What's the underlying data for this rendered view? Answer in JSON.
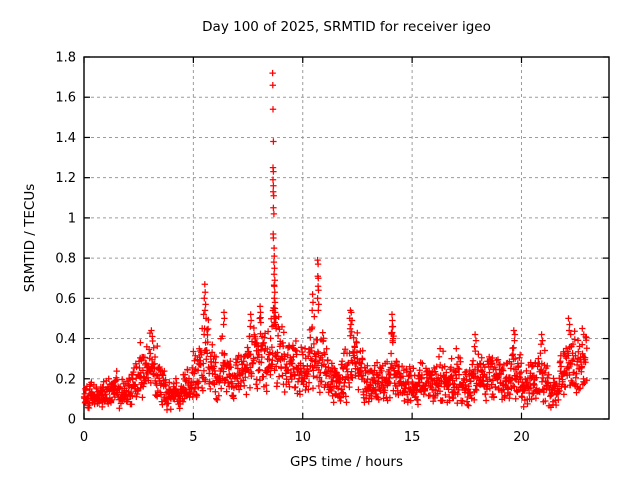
{
  "chart_data": {
    "type": "scatter",
    "title": "Day 100 of 2025, SRMTID for receiver igeo",
    "xlabel": "GPS time / hours",
    "ylabel": "SRMTID / TECUs",
    "xlim": [
      0,
      24
    ],
    "ylim": [
      0,
      1.8
    ],
    "xticks": [
      0,
      5,
      10,
      15,
      20
    ],
    "xtick_labels": [
      "0",
      "5",
      "10",
      "15",
      "20"
    ],
    "yticks": [
      0,
      0.2,
      0.4,
      0.6,
      0.8,
      1.0,
      1.2,
      1.4,
      1.6,
      1.8
    ],
    "ytick_labels": [
      "0",
      "0.2",
      "0.4",
      "0.6",
      "0.8",
      "1",
      "1.2",
      "1.4",
      "1.6",
      "1.8"
    ],
    "grid": true,
    "legend": "none",
    "marker": "plus",
    "marker_color": "#ff0000",
    "points_per_segment": 18,
    "segment_hours": 0.25,
    "envelope": [
      [
        0,
        0.11,
        0.06
      ],
      [
        0.25,
        0.12,
        0.07
      ],
      [
        0.5,
        0.11,
        0.06
      ],
      [
        0.75,
        0.12,
        0.06
      ],
      [
        1,
        0.13,
        0.07
      ],
      [
        1.25,
        0.15,
        0.08
      ],
      [
        1.5,
        0.13,
        0.07
      ],
      [
        1.75,
        0.12,
        0.06
      ],
      [
        2,
        0.14,
        0.07
      ],
      [
        2.25,
        0.17,
        0.09
      ],
      [
        2.5,
        0.2,
        0.1
      ],
      [
        2.75,
        0.24,
        0.11
      ],
      [
        3,
        0.26,
        0.13
      ],
      [
        3.25,
        0.22,
        0.11
      ],
      [
        3.5,
        0.15,
        0.08
      ],
      [
        3.75,
        0.11,
        0.07
      ],
      [
        4,
        0.12,
        0.07
      ],
      [
        4.25,
        0.13,
        0.07
      ],
      [
        4.5,
        0.16,
        0.08
      ],
      [
        4.75,
        0.18,
        0.09
      ],
      [
        5,
        0.21,
        0.1
      ],
      [
        5.25,
        0.28,
        0.14
      ],
      [
        5.5,
        0.34,
        0.19
      ],
      [
        5.75,
        0.26,
        0.12
      ],
      [
        6,
        0.22,
        0.11
      ],
      [
        6.25,
        0.28,
        0.14
      ],
      [
        6.5,
        0.25,
        0.12
      ],
      [
        6.75,
        0.2,
        0.1
      ],
      [
        7,
        0.22,
        0.1
      ],
      [
        7.25,
        0.24,
        0.12
      ],
      [
        7.5,
        0.29,
        0.14
      ],
      [
        7.75,
        0.29,
        0.14
      ],
      [
        8,
        0.31,
        0.15
      ],
      [
        8.25,
        0.29,
        0.14
      ],
      [
        8.5,
        0.38,
        0.22
      ],
      [
        8.75,
        0.36,
        0.2
      ],
      [
        9,
        0.3,
        0.15
      ],
      [
        9.25,
        0.27,
        0.13
      ],
      [
        9.5,
        0.25,
        0.12
      ],
      [
        9.75,
        0.22,
        0.11
      ],
      [
        10,
        0.24,
        0.12
      ],
      [
        10.25,
        0.28,
        0.14
      ],
      [
        10.5,
        0.34,
        0.18
      ],
      [
        10.75,
        0.28,
        0.14
      ],
      [
        11,
        0.22,
        0.11
      ],
      [
        11.25,
        0.18,
        0.1
      ],
      [
        11.5,
        0.17,
        0.1
      ],
      [
        11.75,
        0.21,
        0.11
      ],
      [
        12,
        0.28,
        0.14
      ],
      [
        12.25,
        0.3,
        0.14
      ],
      [
        12.5,
        0.24,
        0.12
      ],
      [
        12.75,
        0.18,
        0.1
      ],
      [
        13,
        0.15,
        0.09
      ],
      [
        13.25,
        0.17,
        0.09
      ],
      [
        13.5,
        0.19,
        0.1
      ],
      [
        13.75,
        0.2,
        0.1
      ],
      [
        14,
        0.27,
        0.15
      ],
      [
        14.25,
        0.19,
        0.1
      ],
      [
        14.5,
        0.17,
        0.09
      ],
      [
        14.75,
        0.16,
        0.08
      ],
      [
        15,
        0.16,
        0.08
      ],
      [
        15.25,
        0.17,
        0.09
      ],
      [
        15.5,
        0.17,
        0.09
      ],
      [
        15.75,
        0.18,
        0.09
      ],
      [
        16,
        0.19,
        0.1
      ],
      [
        16.25,
        0.21,
        0.11
      ],
      [
        16.5,
        0.18,
        0.1
      ],
      [
        16.75,
        0.18,
        0.1
      ],
      [
        17,
        0.2,
        0.11
      ],
      [
        17.25,
        0.16,
        0.09
      ],
      [
        17.5,
        0.15,
        0.09
      ],
      [
        17.75,
        0.23,
        0.12
      ],
      [
        18,
        0.21,
        0.11
      ],
      [
        18.25,
        0.2,
        0.1
      ],
      [
        18.5,
        0.19,
        0.1
      ],
      [
        18.75,
        0.18,
        0.09
      ],
      [
        19,
        0.18,
        0.09
      ],
      [
        19.25,
        0.19,
        0.1
      ],
      [
        19.5,
        0.25,
        0.13
      ],
      [
        19.75,
        0.21,
        0.11
      ],
      [
        20,
        0.18,
        0.1
      ],
      [
        20.25,
        0.18,
        0.1
      ],
      [
        20.5,
        0.2,
        0.11
      ],
      [
        20.75,
        0.23,
        0.12
      ],
      [
        21,
        0.2,
        0.12
      ],
      [
        21.25,
        0.14,
        0.08
      ],
      [
        21.5,
        0.15,
        0.09
      ],
      [
        21.75,
        0.2,
        0.11
      ],
      [
        22,
        0.27,
        0.13
      ],
      [
        22.25,
        0.28,
        0.14
      ],
      [
        22.5,
        0.24,
        0.13
      ],
      [
        22.75,
        0.27,
        0.14
      ]
    ],
    "outliers": [
      [
        8.62,
        1.72
      ],
      [
        8.63,
        1.66
      ],
      [
        8.64,
        1.54
      ],
      [
        8.66,
        1.38
      ],
      [
        8.64,
        1.25
      ],
      [
        8.66,
        1.23
      ],
      [
        8.64,
        1.19
      ],
      [
        8.66,
        1.16
      ],
      [
        8.65,
        1.13
      ],
      [
        8.67,
        1.11
      ],
      [
        8.66,
        1.05
      ],
      [
        8.68,
        1.02
      ],
      [
        8.65,
        0.92
      ],
      [
        8.66,
        0.9
      ],
      [
        8.69,
        0.85
      ],
      [
        8.7,
        0.81
      ],
      [
        8.68,
        0.78
      ],
      [
        8.71,
        0.75
      ],
      [
        8.69,
        0.72
      ],
      [
        8.72,
        0.69
      ],
      [
        8.7,
        0.66
      ],
      [
        8.72,
        0.63
      ],
      [
        8.7,
        0.6
      ],
      [
        8.73,
        0.58
      ],
      [
        8.71,
        0.55
      ],
      [
        8.74,
        0.53
      ],
      [
        8.69,
        0.51
      ],
      [
        8.74,
        0.5
      ],
      [
        8.72,
        0.48
      ],
      [
        8.76,
        0.47
      ],
      [
        8.6,
        0.46
      ],
      [
        8.78,
        0.45
      ],
      [
        5.52,
        0.67
      ],
      [
        5.54,
        0.63
      ],
      [
        5.5,
        0.6
      ],
      [
        5.56,
        0.57
      ],
      [
        5.53,
        0.54
      ],
      [
        5.47,
        0.52
      ],
      [
        5.58,
        0.5
      ],
      [
        6.4,
        0.53
      ],
      [
        6.42,
        0.5
      ],
      [
        6.38,
        0.47
      ],
      [
        7.62,
        0.52
      ],
      [
        7.64,
        0.49
      ],
      [
        7.6,
        0.46
      ],
      [
        8.05,
        0.56
      ],
      [
        8.07,
        0.53
      ],
      [
        8.03,
        0.5
      ],
      [
        8.08,
        0.48
      ],
      [
        10.45,
        0.62
      ],
      [
        10.47,
        0.58
      ],
      [
        10.43,
        0.54
      ],
      [
        10.68,
        0.79
      ],
      [
        10.7,
        0.77
      ],
      [
        10.69,
        0.71
      ],
      [
        10.71,
        0.7
      ],
      [
        10.7,
        0.66
      ],
      [
        10.72,
        0.64
      ],
      [
        10.68,
        0.6
      ],
      [
        10.73,
        0.57
      ],
      [
        10.71,
        0.54
      ],
      [
        12.18,
        0.54
      ],
      [
        12.22,
        0.53
      ],
      [
        12.15,
        0.5
      ],
      [
        12.25,
        0.49
      ],
      [
        12.2,
        0.47
      ],
      [
        14.08,
        0.52
      ],
      [
        14.1,
        0.49
      ],
      [
        14.12,
        0.46
      ],
      [
        14.09,
        0.43
      ],
      [
        14.13,
        0.4
      ],
      [
        3.08,
        0.44
      ],
      [
        3.12,
        0.41
      ],
      [
        2.58,
        0.38
      ],
      [
        16.28,
        0.35
      ],
      [
        17.02,
        0.35
      ],
      [
        17.88,
        0.42
      ],
      [
        17.92,
        0.39
      ],
      [
        17.85,
        0.36
      ],
      [
        19.65,
        0.44
      ],
      [
        19.7,
        0.42
      ],
      [
        19.68,
        0.39
      ],
      [
        20.92,
        0.42
      ],
      [
        20.96,
        0.39
      ],
      [
        22.15,
        0.5
      ],
      [
        22.2,
        0.47
      ],
      [
        22.18,
        0.44
      ],
      [
        22.25,
        0.42
      ],
      [
        22.78,
        0.45
      ],
      [
        22.85,
        0.42
      ]
    ]
  }
}
